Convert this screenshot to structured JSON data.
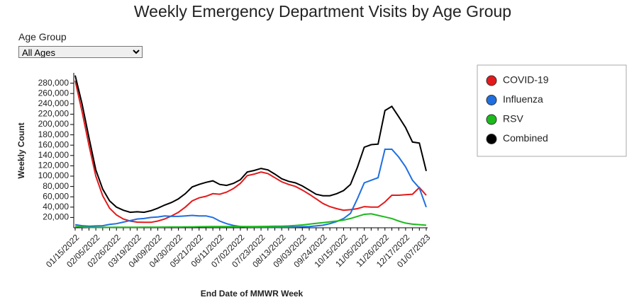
{
  "filter": {
    "label": "Age Group",
    "selected": "All Ages"
  },
  "chart_data": {
    "type": "line",
    "title": "Weekly Emergency Department Visits by Age Group",
    "y_label": "Weekly Count",
    "x_label": "End Date of MMWR Week",
    "categories": [
      "01/15/2022",
      null,
      null,
      "02/05/2022",
      null,
      null,
      "02/26/2022",
      null,
      null,
      "03/19/2022",
      null,
      null,
      "04/09/2022",
      null,
      null,
      "04/30/2022",
      null,
      null,
      "05/21/2022",
      null,
      null,
      "06/11/2022",
      null,
      null,
      "07/02/2022",
      null,
      null,
      "07/23/2022",
      null,
      null,
      "08/13/2022",
      null,
      null,
      "09/03/2022",
      null,
      null,
      "09/24/2022",
      null,
      null,
      "10/15/2022",
      null,
      null,
      "11/05/2022",
      null,
      null,
      "11/26/2022",
      null,
      null,
      "12/17/2022",
      null,
      null,
      "01/07/2023"
    ],
    "ylim": [
      0,
      300000
    ],
    "yticks": [
      {
        "value": 20000,
        "label": "20,000"
      },
      {
        "value": 40000,
        "label": "40,000"
      },
      {
        "value": 60000,
        "label": "60,000"
      },
      {
        "value": 80000,
        "label": "80,000"
      },
      {
        "value": 100000,
        "label": "100,000"
      },
      {
        "value": 120000,
        "label": "120,000"
      },
      {
        "value": 140000,
        "label": "140,000"
      },
      {
        "value": 160000,
        "label": "160,000"
      },
      {
        "value": 180000,
        "label": "180,000"
      },
      {
        "value": 200000,
        "label": "200,000"
      },
      {
        "value": 220000,
        "label": "220,000"
      },
      {
        "value": 240000,
        "label": "240,000"
      },
      {
        "value": 260000,
        "label": "260,000"
      },
      {
        "value": 280000,
        "label": "280,000"
      }
    ],
    "legend": "right",
    "series": [
      {
        "name": "COVID-19",
        "color": "#e31a1c",
        "values": [
          285000,
          225000,
          160000,
          100000,
          62000,
          38000,
          25000,
          17000,
          13000,
          11000,
          10500,
          10500,
          13000,
          17000,
          23000,
          30000,
          40000,
          52000,
          58000,
          61000,
          66000,
          65000,
          69000,
          76000,
          86000,
          101000,
          104000,
          108000,
          105000,
          97000,
          89000,
          84000,
          80000,
          73000,
          65000,
          56000,
          47000,
          41000,
          37000,
          34000,
          35000,
          37000,
          41000,
          40000,
          40000,
          50000,
          63000,
          63000,
          64000,
          65000,
          78000,
          63000
        ]
      },
      {
        "name": "Influenza",
        "color": "#1f6fe0",
        "values": [
          6000,
          4000,
          3000,
          3500,
          4000,
          6500,
          8000,
          11000,
          14000,
          17000,
          18000,
          20000,
          21000,
          23000,
          22000,
          22000,
          23000,
          24000,
          23000,
          23000,
          20000,
          13000,
          8000,
          4500,
          2500,
          1500,
          1200,
          1000,
          1000,
          1000,
          1000,
          1200,
          1500,
          2000,
          2500,
          3500,
          5000,
          8000,
          12000,
          18000,
          28000,
          56000,
          87000,
          92000,
          97000,
          152000,
          152000,
          137000,
          118000,
          92000,
          77000,
          40000
        ]
      },
      {
        "name": "RSV",
        "color": "#1db91d",
        "values": [
          2500,
          1500,
          1000,
          800,
          800,
          800,
          900,
          1000,
          1000,
          1100,
          1200,
          1200,
          1300,
          1400,
          1500,
          1500,
          1600,
          1800,
          2000,
          2200,
          2400,
          2500,
          2500,
          2500,
          2500,
          2500,
          2500,
          2600,
          2800,
          3000,
          3200,
          3500,
          4500,
          5500,
          7000,
          8500,
          10000,
          11500,
          13000,
          15000,
          18000,
          22000,
          26000,
          27000,
          24000,
          21000,
          18000,
          13000,
          9000,
          7000,
          6000,
          5000
        ]
      },
      {
        "name": "Combined",
        "color": "#000000",
        "values": [
          295000,
          240000,
          175000,
          112000,
          75000,
          52000,
          40000,
          34000,
          30000,
          31000,
          30000,
          33000,
          38000,
          44000,
          49000,
          56000,
          66000,
          79000,
          84000,
          88000,
          91000,
          84000,
          82000,
          86000,
          93000,
          108000,
          111000,
          115000,
          112000,
          104000,
          95000,
          90000,
          87000,
          81000,
          73000,
          65000,
          62000,
          62000,
          66000,
          72000,
          84000,
          117000,
          156000,
          161000,
          162000,
          227000,
          235000,
          215000,
          194000,
          166000,
          164000,
          110000
        ]
      }
    ]
  }
}
